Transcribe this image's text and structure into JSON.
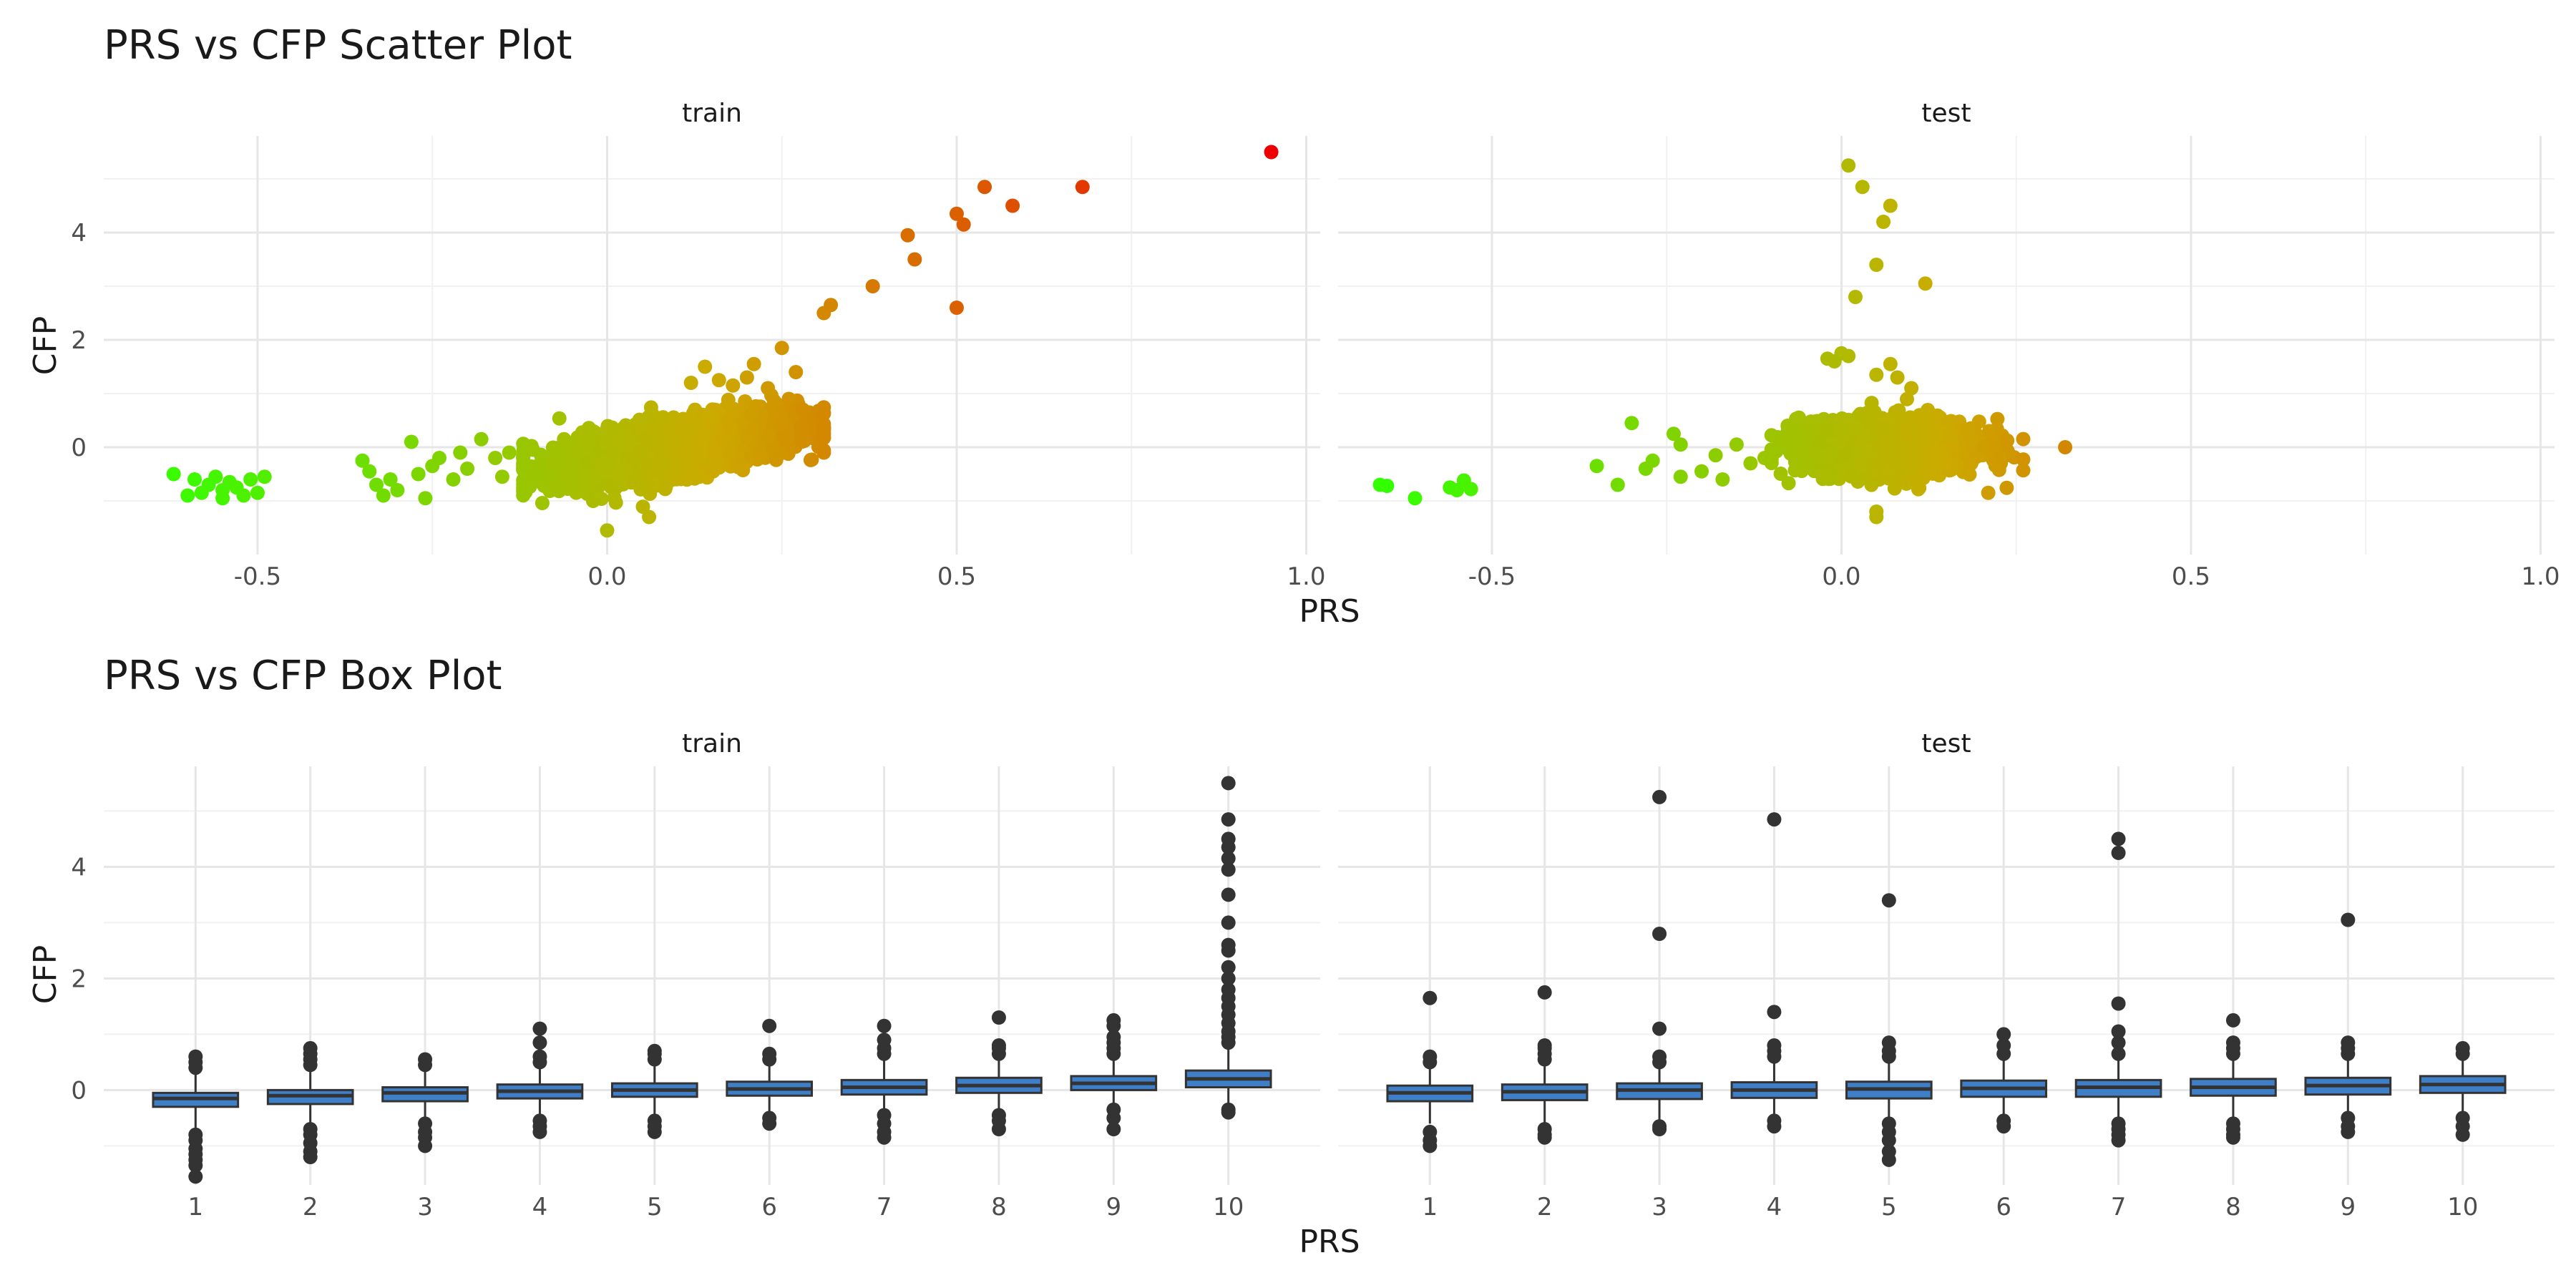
{
  "chart_data": [
    {
      "type": "scatter",
      "title": "PRS vs CFP Scatter Plot",
      "xlabel": "PRS",
      "ylabel": "CFP",
      "xlim": [
        -0.72,
        1.02
      ],
      "ylim": [
        -2.0,
        5.8
      ],
      "xticks": [
        -0.5,
        0.0,
        0.5,
        1.0
      ],
      "xtick_labels": [
        "-0.5",
        "0.0",
        "0.5",
        "1.0"
      ],
      "yticks": [
        0,
        2,
        4
      ],
      "ytick_labels": [
        "0",
        "2",
        "4"
      ],
      "grid": true,
      "legend": "none",
      "color_scale": {
        "low": "#33ff00",
        "mid": "#ccaa00",
        "high": "#ee0000",
        "domain": [
          -0.65,
          0.95
        ]
      },
      "panels": [
        {
          "name": "train",
          "points": [
            [
              -0.62,
              -0.5
            ],
            [
              -0.6,
              -0.9
            ],
            [
              -0.59,
              -0.6
            ],
            [
              -0.58,
              -0.85
            ],
            [
              -0.57,
              -0.7
            ],
            [
              -0.56,
              -0.55
            ],
            [
              -0.55,
              -0.8
            ],
            [
              -0.55,
              -0.95
            ],
            [
              -0.54,
              -0.65
            ],
            [
              -0.53,
              -0.75
            ],
            [
              -0.52,
              -0.9
            ],
            [
              -0.51,
              -0.6
            ],
            [
              -0.5,
              -0.85
            ],
            [
              -0.49,
              -0.55
            ],
            [
              -0.35,
              -0.25
            ],
            [
              -0.34,
              -0.45
            ],
            [
              -0.33,
              -0.7
            ],
            [
              -0.32,
              -0.9
            ],
            [
              -0.31,
              -0.6
            ],
            [
              -0.3,
              -0.8
            ],
            [
              -0.28,
              0.1
            ],
            [
              -0.27,
              -0.5
            ],
            [
              -0.26,
              -0.95
            ],
            [
              -0.25,
              -0.35
            ],
            [
              -0.24,
              -0.2
            ],
            [
              -0.22,
              -0.6
            ],
            [
              -0.21,
              -0.1
            ],
            [
              -0.2,
              -0.4
            ],
            [
              -0.18,
              0.15
            ],
            [
              -0.16,
              -0.2
            ],
            [
              -0.15,
              -0.55
            ],
            [
              -0.14,
              -0.1
            ],
            [
              -0.12,
              -0.3
            ],
            [
              0.26,
              0.9
            ],
            [
              0.27,
              1.4
            ],
            [
              0.28,
              0.7
            ],
            [
              0.23,
              1.1
            ],
            [
              0.25,
              1.85
            ],
            [
              0.21,
              1.55
            ],
            [
              0.2,
              1.3
            ],
            [
              0.18,
              1.15
            ],
            [
              0.14,
              1.5
            ],
            [
              0.16,
              1.25
            ],
            [
              0.12,
              1.2
            ],
            [
              0.06,
              -1.3
            ],
            [
              0.0,
              -1.55
            ],
            [
              -0.02,
              -1.0
            ],
            [
              0.31,
              2.5
            ],
            [
              0.32,
              2.65
            ],
            [
              0.38,
              3.0
            ],
            [
              0.43,
              3.95
            ],
            [
              0.44,
              3.5
            ],
            [
              0.5,
              2.6
            ],
            [
              0.5,
              4.35
            ],
            [
              0.51,
              4.15
            ],
            [
              0.54,
              4.85
            ],
            [
              0.58,
              4.5
            ],
            [
              0.68,
              4.85
            ],
            [
              0.95,
              5.5
            ]
          ],
          "cluster": {
            "x_center": 0.1,
            "x_sd": 0.085,
            "x_range": [
              -0.12,
              0.31
            ],
            "slope": 2.1,
            "y_sd": 0.25,
            "n": 2200
          }
        },
        {
          "name": "test",
          "points": [
            [
              -0.66,
              -0.7
            ],
            [
              -0.65,
              -0.72
            ],
            [
              -0.61,
              -0.95
            ],
            [
              -0.56,
              -0.75
            ],
            [
              -0.55,
              -0.8
            ],
            [
              -0.54,
              -0.62
            ],
            [
              -0.53,
              -0.78
            ],
            [
              -0.35,
              -0.35
            ],
            [
              -0.32,
              -0.7
            ],
            [
              -0.3,
              0.45
            ],
            [
              -0.28,
              -0.4
            ],
            [
              -0.27,
              -0.25
            ],
            [
              -0.24,
              0.25
            ],
            [
              -0.23,
              0.05
            ],
            [
              -0.23,
              -0.55
            ],
            [
              -0.2,
              -0.45
            ],
            [
              -0.18,
              -0.15
            ],
            [
              -0.17,
              -0.6
            ],
            [
              -0.15,
              0.05
            ],
            [
              -0.13,
              -0.3
            ],
            [
              -0.11,
              -0.2
            ],
            [
              0.01,
              5.25
            ],
            [
              0.03,
              4.85
            ],
            [
              0.07,
              4.5
            ],
            [
              0.06,
              4.2
            ],
            [
              0.05,
              3.4
            ],
            [
              0.12,
              3.05
            ],
            [
              0.02,
              2.8
            ],
            [
              0.0,
              1.75
            ],
            [
              -0.02,
              1.65
            ],
            [
              0.01,
              1.7
            ],
            [
              -0.01,
              1.6
            ],
            [
              0.05,
              1.35
            ],
            [
              0.07,
              1.55
            ],
            [
              0.08,
              1.3
            ],
            [
              0.1,
              1.1
            ],
            [
              0.05,
              -1.2
            ],
            [
              0.05,
              -1.3
            ],
            [
              0.21,
              -0.85
            ],
            [
              0.32,
              0.0
            ]
          ],
          "cluster": {
            "x_center": 0.07,
            "x_sd": 0.065,
            "x_range": [
              -0.1,
              0.26
            ],
            "slope": 0.0,
            "y_sd": 0.25,
            "n": 1400
          }
        }
      ]
    },
    {
      "type": "box",
      "title": "PRS vs CFP Box Plot",
      "xlabel": "PRS",
      "ylabel": "CFP",
      "categories": [
        "1",
        "2",
        "3",
        "4",
        "5",
        "6",
        "7",
        "8",
        "9",
        "10"
      ],
      "ylim": [
        -1.7,
        5.8
      ],
      "yticks": [
        0,
        2,
        4
      ],
      "ytick_labels": [
        "0",
        "2",
        "4"
      ],
      "box_color": "#3e7fc8",
      "grid": true,
      "panels": [
        {
          "name": "train",
          "boxes": [
            {
              "q1": -0.3,
              "median": -0.15,
              "q3": -0.05,
              "whisker_low": -0.7,
              "whisker_high": 0.3,
              "outliers": [
                0.4,
                0.5,
                0.6,
                -0.8,
                -0.9,
                -1.05,
                -1.15,
                -1.25,
                -1.35,
                -1.55
              ]
            },
            {
              "q1": -0.25,
              "median": -0.1,
              "q3": 0.0,
              "whisker_low": -0.6,
              "whisker_high": 0.35,
              "outliers": [
                0.45,
                0.55,
                0.65,
                0.75,
                -0.7,
                -0.8,
                -0.95,
                -1.1,
                -1.2
              ]
            },
            {
              "q1": -0.2,
              "median": -0.05,
              "q3": 0.05,
              "whisker_low": -0.5,
              "whisker_high": 0.35,
              "outliers": [
                0.45,
                0.55,
                -0.6,
                -0.75,
                -0.85,
                -1.0
              ]
            },
            {
              "q1": -0.15,
              "median": -0.02,
              "q3": 0.1,
              "whisker_low": -0.5,
              "whisker_high": 0.45,
              "outliers": [
                0.5,
                0.6,
                0.85,
                1.1,
                -0.55,
                -0.65,
                -0.75
              ]
            },
            {
              "q1": -0.12,
              "median": 0.0,
              "q3": 0.12,
              "whisker_low": -0.45,
              "whisker_high": 0.45,
              "outliers": [
                0.55,
                0.65,
                0.7,
                -0.55,
                -0.65,
                -0.75
              ]
            },
            {
              "q1": -0.1,
              "median": 0.02,
              "q3": 0.15,
              "whisker_low": -0.4,
              "whisker_high": 0.45,
              "outliers": [
                0.55,
                0.65,
                1.15,
                -0.5,
                -0.6
              ]
            },
            {
              "q1": -0.08,
              "median": 0.05,
              "q3": 0.18,
              "whisker_low": -0.35,
              "whisker_high": 0.55,
              "outliers": [
                0.65,
                0.75,
                0.9,
                1.15,
                -0.45,
                -0.6,
                -0.75,
                -0.85
              ]
            },
            {
              "q1": -0.05,
              "median": 0.08,
              "q3": 0.22,
              "whisker_low": -0.35,
              "whisker_high": 0.55,
              "outliers": [
                0.65,
                0.75,
                0.8,
                1.3,
                -0.45,
                -0.55,
                -0.7
              ]
            },
            {
              "q1": 0.0,
              "median": 0.12,
              "q3": 0.25,
              "whisker_low": -0.3,
              "whisker_high": 0.55,
              "outliers": [
                0.65,
                0.75,
                0.85,
                0.95,
                1.15,
                1.25,
                -0.35,
                -0.5,
                -0.7
              ]
            },
            {
              "q1": 0.05,
              "median": 0.2,
              "q3": 0.35,
              "whisker_low": -0.3,
              "whisker_high": 0.75,
              "outliers": [
                0.85,
                0.95,
                1.05,
                1.2,
                1.35,
                1.5,
                1.65,
                1.8,
                2.0,
                2.2,
                2.5,
                2.6,
                3.0,
                3.5,
                3.95,
                4.15,
                4.35,
                4.5,
                4.85,
                5.5,
                -0.35,
                -0.4
              ]
            }
          ]
        },
        {
          "name": "test",
          "boxes": [
            {
              "q1": -0.2,
              "median": -0.05,
              "q3": 0.08,
              "whisker_low": -0.6,
              "whisker_high": 0.45,
              "outliers": [
                0.5,
                0.6,
                1.65,
                -0.75,
                -0.9,
                -1.0
              ]
            },
            {
              "q1": -0.18,
              "median": -0.03,
              "q3": 0.1,
              "whisker_low": -0.6,
              "whisker_high": 0.45,
              "outliers": [
                0.55,
                0.65,
                0.75,
                0.8,
                1.75,
                -0.7,
                -0.8,
                -0.85
              ]
            },
            {
              "q1": -0.16,
              "median": 0.0,
              "q3": 0.12,
              "whisker_low": -0.55,
              "whisker_high": 0.45,
              "outliers": [
                0.5,
                0.6,
                1.1,
                2.8,
                5.25,
                -0.65,
                -0.7
              ]
            },
            {
              "q1": -0.14,
              "median": 0.0,
              "q3": 0.14,
              "whisker_low": -0.5,
              "whisker_high": 0.5,
              "outliers": [
                0.6,
                0.7,
                0.8,
                1.4,
                4.85,
                -0.55,
                -0.65
              ]
            },
            {
              "q1": -0.15,
              "median": 0.02,
              "q3": 0.15,
              "whisker_low": -0.5,
              "whisker_high": 0.5,
              "outliers": [
                0.6,
                0.7,
                0.85,
                3.4,
                -0.6,
                -0.75,
                -0.9,
                -1.1,
                -1.25
              ]
            },
            {
              "q1": -0.12,
              "median": 0.03,
              "q3": 0.17,
              "whisker_low": -0.5,
              "whisker_high": 0.55,
              "outliers": [
                0.65,
                0.8,
                1.0,
                -0.55,
                -0.65
              ]
            },
            {
              "q1": -0.12,
              "median": 0.05,
              "q3": 0.18,
              "whisker_low": -0.5,
              "whisker_high": 0.55,
              "outliers": [
                0.65,
                0.85,
                1.05,
                1.55,
                4.25,
                4.5,
                -0.6,
                -0.7,
                -0.8,
                -0.9
              ]
            },
            {
              "q1": -0.1,
              "median": 0.05,
              "q3": 0.2,
              "whisker_low": -0.5,
              "whisker_high": 0.55,
              "outliers": [
                0.65,
                0.75,
                0.85,
                1.25,
                -0.6,
                -0.7,
                -0.8,
                -0.85
              ]
            },
            {
              "q1": -0.08,
              "median": 0.08,
              "q3": 0.22,
              "whisker_low": -0.45,
              "whisker_high": 0.55,
              "outliers": [
                0.65,
                0.75,
                0.85,
                3.05,
                -0.5,
                -0.65,
                -0.75
              ]
            },
            {
              "q1": -0.05,
              "median": 0.1,
              "q3": 0.25,
              "whisker_low": -0.4,
              "whisker_high": 0.55,
              "outliers": [
                0.65,
                0.75,
                -0.5,
                -0.65,
                -0.8
              ]
            }
          ]
        }
      ]
    }
  ]
}
